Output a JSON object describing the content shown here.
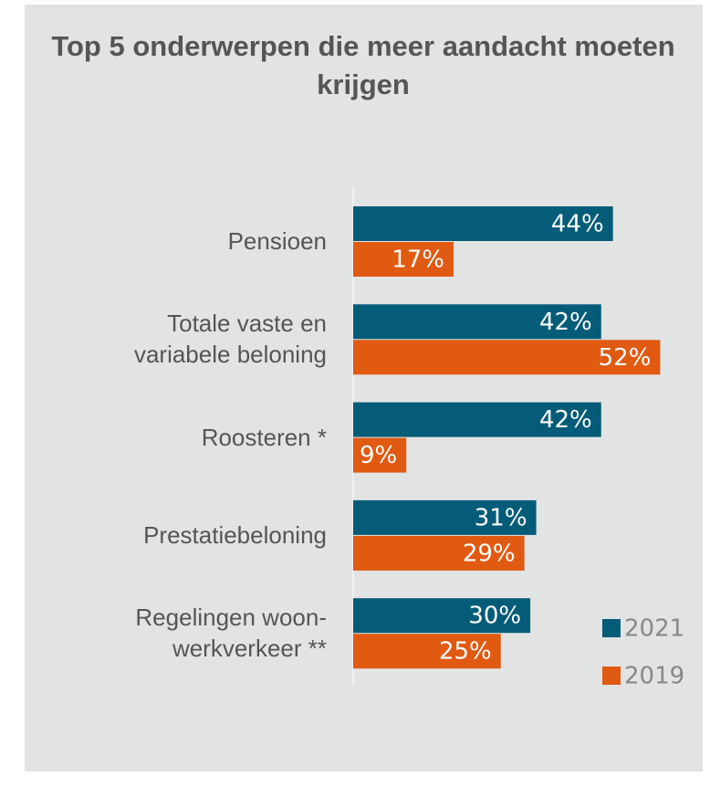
{
  "chart_data": {
    "type": "bar",
    "orientation": "horizontal",
    "title": "Top 5 onderwerpen die meer aandacht moeten krijgen",
    "categories": [
      "Pensioen",
      "Totale vaste en variabele beloning",
      "Roosteren *",
      "Prestatiebeloning",
      "Regelingen woon-werkverkeer **"
    ],
    "series": [
      {
        "name": "2021",
        "color": "#055c78",
        "values": [
          44,
          42,
          42,
          31,
          30
        ],
        "value_labels": [
          "44%",
          "42%",
          "42%",
          "31%",
          "30%"
        ]
      },
      {
        "name": "2019",
        "color": "#e05a12",
        "values": [
          17,
          52,
          9,
          29,
          25
        ],
        "value_labels": [
          "17%",
          "52%",
          "9%",
          "29%",
          "25%"
        ]
      }
    ],
    "legend": "bottom-right"
  }
}
